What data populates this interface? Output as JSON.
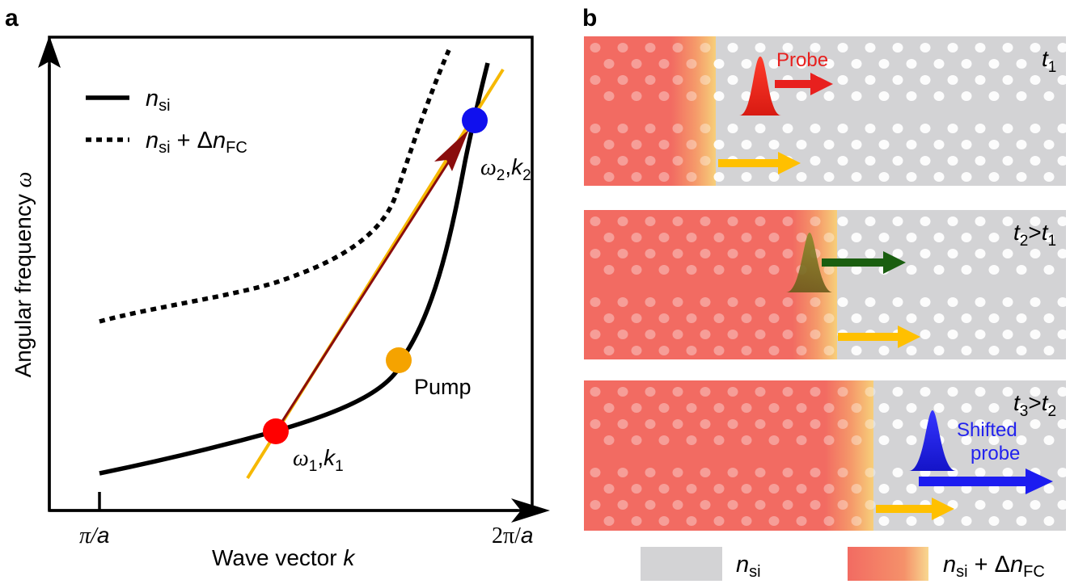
{
  "panel_a": {
    "panel_label": "a",
    "legend": {
      "solid_n": "n",
      "solid_sub": "si",
      "dotted_n": "n",
      "dotted_sub": "si",
      "dotted_plus": " + Δ",
      "dotted_n2": "n",
      "dotted_sub2": "FC"
    },
    "y_axis_label": "Angular frequency ",
    "y_axis_symbol": "ω",
    "x_axis_label": "Wave vector ",
    "x_axis_symbol": "k",
    "x_tick_left": "π/",
    "x_tick_left_a": "a",
    "x_tick_right": "2π/",
    "x_tick_right_a": "a",
    "point1": {
      "omega": "ω",
      "sub1": "1",
      "comma": ",",
      "k": "k",
      "sub2": "1",
      "color": "#ff0000"
    },
    "point2": {
      "omega": "ω",
      "sub1": "2",
      "comma": ",",
      "k": "k",
      "sub2": "2",
      "color": "#1010ee"
    },
    "pump": {
      "label": "Pump",
      "color": "#f5a300"
    }
  },
  "panel_b": {
    "panel_label": "b",
    "rows": [
      {
        "time_t": "t",
        "time_sub": "1",
        "rel": "",
        "rel_t": "",
        "rel_sub": "",
        "pulse_label": "Probe",
        "pulse_label_color": "#e8201e"
      },
      {
        "time_t": "t",
        "time_sub": "2",
        "rel": ">",
        "rel_t": "t",
        "rel_sub": "1"
      },
      {
        "time_t": "t",
        "time_sub": "3",
        "rel": ">",
        "rel_t": "t",
        "rel_sub": "2",
        "pulse_label_line1": "Shifted",
        "pulse_label_line2": "probe",
        "pulse_label_color": "#2222ee"
      }
    ],
    "legend": {
      "grey_n": "n",
      "grey_sub": "si",
      "red_n": "n",
      "red_sub": "si",
      "red_plus": " + Δ",
      "red_n2": "n",
      "red_sub2": "FC"
    },
    "colors": {
      "silicon": "#d3d3d5",
      "carrier": "#f26b62",
      "front": "#f7c56a",
      "pump_arrow": "#ffc000",
      "probe_red": "#e8201e",
      "probe_green": "#1a5e10",
      "probe_blue": "#1c1cf0"
    }
  }
}
